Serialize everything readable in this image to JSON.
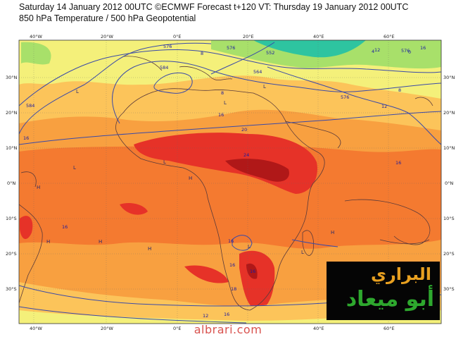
{
  "header": {
    "line1": "Saturday 14 January 2012 00UTC ©ECMWF Forecast t+120 VT: Thursday 19 January 2012 00UTC",
    "line2": "850 hPa Temperature / 500 hPa Geopotential"
  },
  "axes": {
    "lon_labels": [
      "40°W",
      "20°W",
      "0°E",
      "20°E",
      "40°E",
      "60°E"
    ],
    "lat_labels": [
      "30°N",
      "20°N",
      "10°N",
      "0°N",
      "10°S",
      "20°S",
      "30°S"
    ]
  },
  "contour_labels": [
    "576",
    "584",
    "576",
    "564",
    "552",
    "576",
    "584",
    "576",
    "8",
    "8",
    "12",
    "16",
    "16",
    "20",
    "24",
    "16",
    "16",
    "16",
    "16",
    "16",
    "12",
    "8",
    "4",
    "0",
    "12",
    "18",
    "16",
    "16"
  ],
  "pressure_marks": [
    "L",
    "L",
    "L",
    "L",
    "H",
    "H",
    "H",
    "H",
    "H",
    "H",
    "L",
    "L",
    "L",
    "L",
    "H"
  ],
  "watermark": "albrari.com",
  "logo": {
    "line1": "البراري",
    "line2": "أبو ميعاد"
  },
  "colors": {
    "sea_green": "#2ec4a0",
    "green": "#a8e06a",
    "yellow": "#f4f07a",
    "light_orange": "#fcc45a",
    "orange": "#f8a040",
    "dark_orange": "#f47a30",
    "red": "#e63228",
    "dark_red": "#b01818",
    "contour": "#3a4aa8"
  }
}
